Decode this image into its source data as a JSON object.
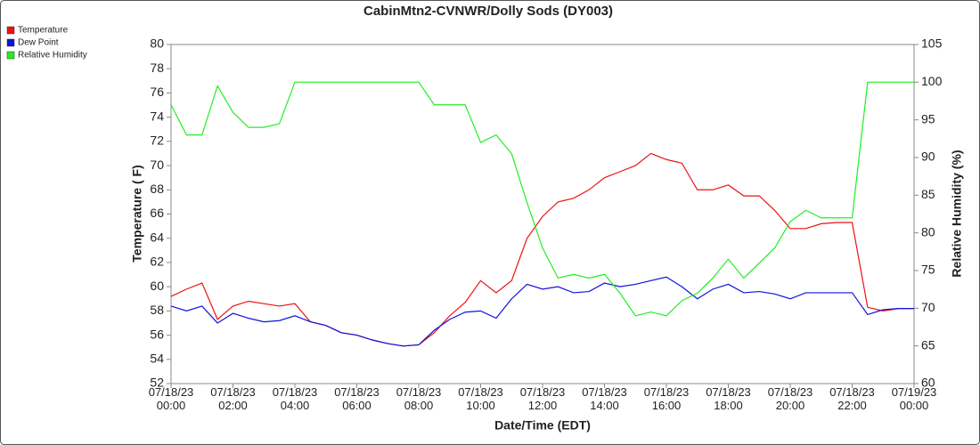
{
  "chart_data": {
    "type": "line",
    "title": "CabinMtn2-CVNWR/Dolly Sods (DY003)",
    "xlabel": "Date/Time (EDT)",
    "ylabel": "Temperature ( F)",
    "y2label": "Relative Humidity (%)",
    "legend": "top-left",
    "x": [
      "07/18/23 00:00",
      "07/18/23 00:30",
      "07/18/23 01:00",
      "07/18/23 01:30",
      "07/18/23 02:00",
      "07/18/23 02:30",
      "07/18/23 03:00",
      "07/18/23 03:30",
      "07/18/23 04:00",
      "07/18/23 04:30",
      "07/18/23 05:00",
      "07/18/23 05:30",
      "07/18/23 06:00",
      "07/18/23 06:30",
      "07/18/23 07:00",
      "07/18/23 07:30",
      "07/18/23 08:00",
      "07/18/23 08:30",
      "07/18/23 09:00",
      "07/18/23 09:30",
      "07/18/23 10:00",
      "07/18/23 10:30",
      "07/18/23 11:00",
      "07/18/23 11:30",
      "07/18/23 12:00",
      "07/18/23 12:30",
      "07/18/23 13:00",
      "07/18/23 13:30",
      "07/18/23 14:00",
      "07/18/23 14:30",
      "07/18/23 15:00",
      "07/18/23 15:30",
      "07/18/23 16:00",
      "07/18/23 16:30",
      "07/18/23 17:00",
      "07/18/23 17:30",
      "07/18/23 18:00",
      "07/18/23 18:30",
      "07/18/23 19:00",
      "07/18/23 19:30",
      "07/18/23 20:00",
      "07/18/23 20:30",
      "07/18/23 21:00",
      "07/18/23 21:30",
      "07/18/23 22:00",
      "07/18/23 22:30",
      "07/18/23 23:00",
      "07/18/23 23:30",
      "07/19/23 00:00"
    ],
    "series": [
      {
        "name": "Temperature",
        "color": "#ee1111",
        "axis": "y",
        "values": [
          59.2,
          59.8,
          60.3,
          57.3,
          58.4,
          58.8,
          58.6,
          58.4,
          58.6,
          57.1,
          56.8,
          56.2,
          56.0,
          55.6,
          55.3,
          55.1,
          55.2,
          56.2,
          57.6,
          58.7,
          60.5,
          59.5,
          60.5,
          64.0,
          65.8,
          67.0,
          67.3,
          68.0,
          69.0,
          69.5,
          70.0,
          71.0,
          70.5,
          70.2,
          68.0,
          68.0,
          68.4,
          67.5,
          67.5,
          66.3,
          64.8,
          64.8,
          65.2,
          65.3,
          65.3,
          58.3,
          58.0,
          58.2,
          58.2
        ]
      },
      {
        "name": "Dew Point",
        "color": "#1111dd",
        "axis": "y",
        "values": [
          58.4,
          58.0,
          58.4,
          57.0,
          57.8,
          57.4,
          57.1,
          57.2,
          57.6,
          57.1,
          56.8,
          56.2,
          56.0,
          55.6,
          55.3,
          55.1,
          55.2,
          56.4,
          57.3,
          57.9,
          58.0,
          57.4,
          59.0,
          60.2,
          59.8,
          60.0,
          59.5,
          59.6,
          60.3,
          60.0,
          60.2,
          60.5,
          60.8,
          60.0,
          59.0,
          59.8,
          60.2,
          59.5,
          59.6,
          59.4,
          59.0,
          59.5,
          59.5,
          59.5,
          59.5,
          57.7,
          58.1,
          58.2,
          58.2
        ]
      },
      {
        "name": "Relative Humidity",
        "color": "#22ee22",
        "axis": "y2",
        "values": [
          97,
          93,
          93,
          99.5,
          96,
          94,
          94,
          94.5,
          100,
          100,
          100,
          100,
          100,
          100,
          100,
          100,
          100,
          97,
          97,
          97,
          92,
          93,
          90.5,
          84,
          78,
          74,
          74.5,
          74,
          74.5,
          72,
          69,
          69.5,
          69,
          71,
          72,
          74,
          76.5,
          74,
          76,
          78,
          81.5,
          83,
          82,
          82,
          82,
          100,
          100,
          100,
          100
        ]
      }
    ],
    "xticks": [
      "07/18/23 00:00",
      "07/18/23 02:00",
      "07/18/23 04:00",
      "07/18/23 06:00",
      "07/18/23 08:00",
      "07/18/23 10:00",
      "07/18/23 12:00",
      "07/18/23 14:00",
      "07/18/23 16:00",
      "07/18/23 18:00",
      "07/18/23 20:00",
      "07/18/23 22:00",
      "07/19/23 00:00"
    ],
    "ylim": [
      52,
      80
    ],
    "yticks": [
      52,
      54,
      56,
      58,
      60,
      62,
      64,
      66,
      68,
      70,
      72,
      74,
      76,
      78,
      80
    ],
    "y2lim": [
      60,
      105
    ],
    "y2ticks": [
      60,
      65,
      70,
      75,
      80,
      85,
      90,
      95,
      100,
      105
    ],
    "grid": false
  }
}
